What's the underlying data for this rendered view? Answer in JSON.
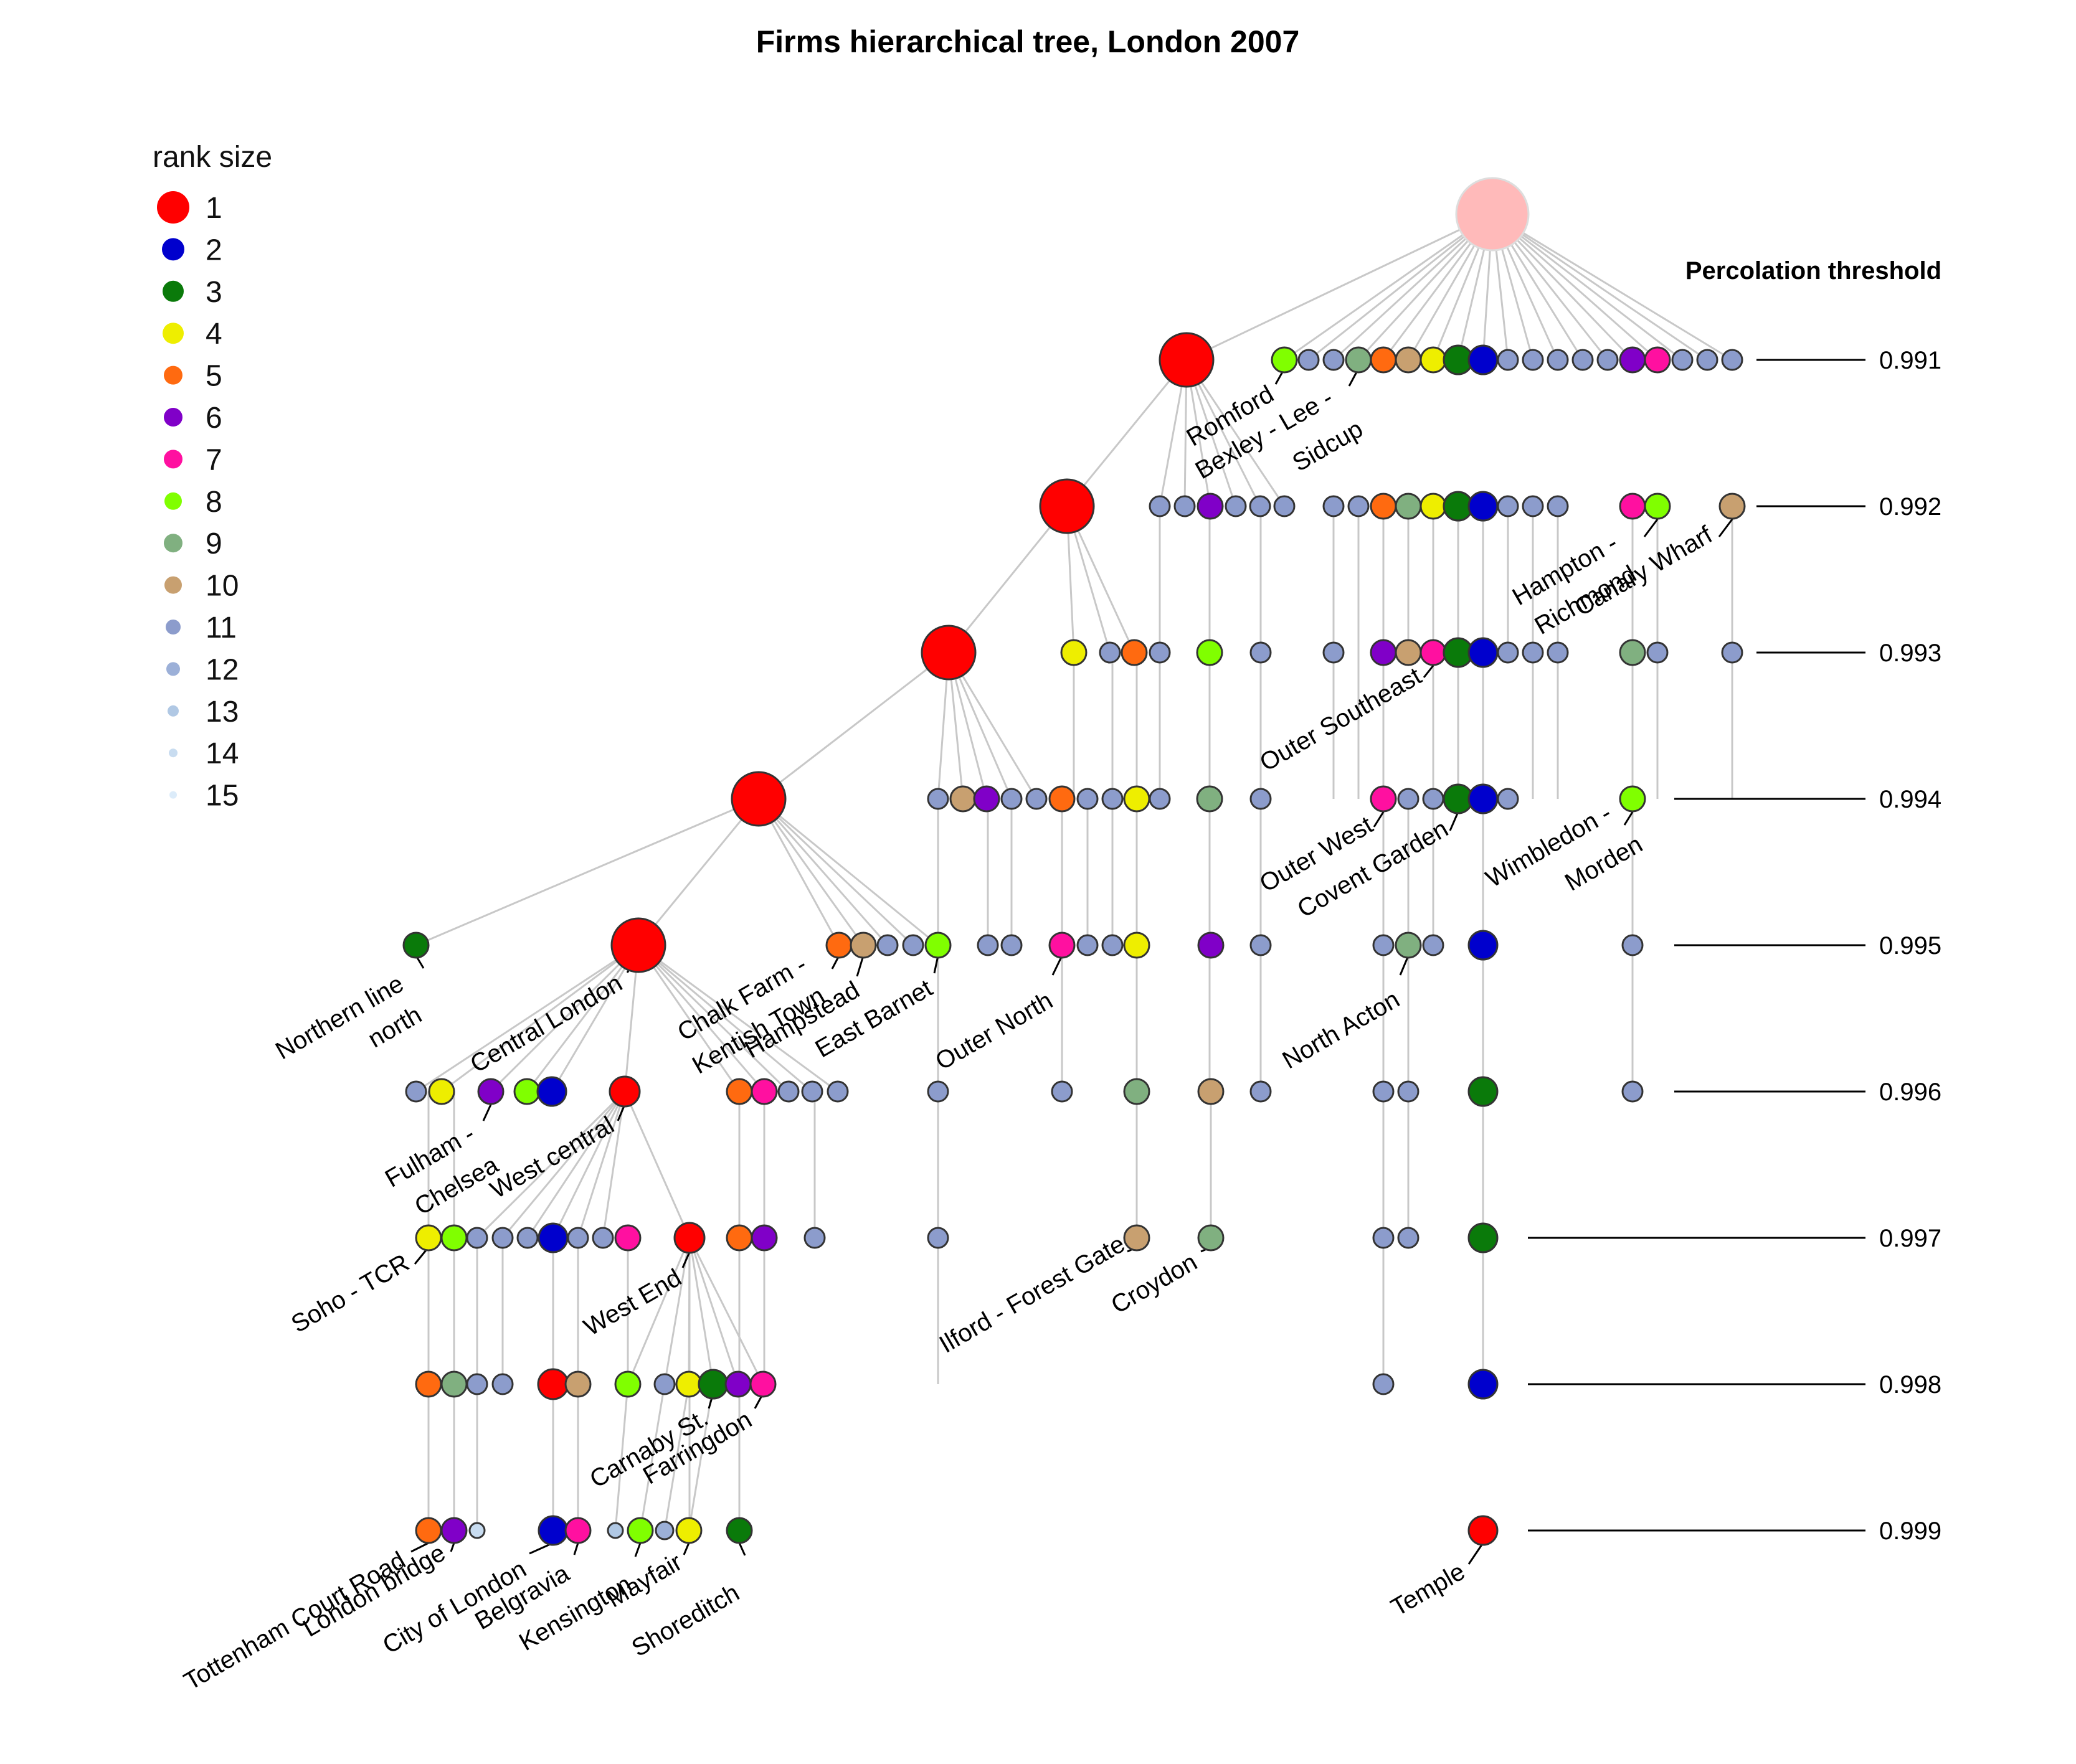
{
  "title": "Firms hierarchical tree, London 2007",
  "legend": {
    "title": "rank size",
    "items": [
      {
        "label": "1",
        "color": "#ff0000"
      },
      {
        "label": "2",
        "color": "#0000cd"
      },
      {
        "label": "3",
        "color": "#0a7a0a"
      },
      {
        "label": "4",
        "color": "#eeee00"
      },
      {
        "label": "5",
        "color": "#ff6a10"
      },
      {
        "label": "6",
        "color": "#8000c8"
      },
      {
        "label": "7",
        "color": "#ff10a0"
      },
      {
        "label": "8",
        "color": "#80ff00"
      },
      {
        "label": "9",
        "color": "#80b080"
      },
      {
        "label": "10",
        "color": "#c8a070"
      },
      {
        "label": "11",
        "color": "#8c9ccc"
      },
      {
        "label": "12",
        "color": "#9cb0d8"
      },
      {
        "label": "13",
        "color": "#b0c8e4"
      },
      {
        "label": "14",
        "color": "#c8dcf0"
      },
      {
        "label": "15",
        "color": "#dcecfa"
      }
    ]
  },
  "percolation": {
    "title": "Percolation threshold",
    "thresholds": [
      "0.991",
      "0.992",
      "0.993",
      "0.994",
      "0.995",
      "0.996",
      "0.997",
      "0.998",
      "0.999"
    ]
  },
  "labels": {
    "romford": "Romford",
    "bexley1": "Bexley - Lee -",
    "bexley2": "Sidcup",
    "hampton1": "Hampton -",
    "hampton2": "Richmond",
    "canary": "Canary Wharf",
    "outer_southeast": "Outer Southeast",
    "outer_west": "Outer West",
    "covent_garden": "Covent Garden",
    "wimbledon1": "Wimbledon -",
    "wimbledon2": "Morden",
    "northern1": "Northern line",
    "northern2": "north",
    "central_london": "Central London",
    "chalk1": "Chalk Farm -",
    "chalk2": "Kentish Town",
    "hampstead": "Hampstead",
    "east_barnet": "East Barnet",
    "outer_north": "Outer North",
    "north_acton": "North Acton",
    "fulham1": "Fulham -",
    "fulham2": "Chelsea",
    "west_central": "West central",
    "soho": "Soho - TCR",
    "west_end": "West End",
    "ilford": "Ilford - Forest Gate",
    "croydon": "Croydon",
    "carnaby": "Carnaby St.",
    "farringdon": "Farringdon",
    "tcr": "Tottenham Court Road",
    "london_bridge": "London bridge",
    "city": "City of London",
    "belgravia": "Belgravia",
    "kensington": "Kensington",
    "mayfair": "Mayfair",
    "shoreditch": "Shoreditch",
    "temple": "Temple"
  }
}
